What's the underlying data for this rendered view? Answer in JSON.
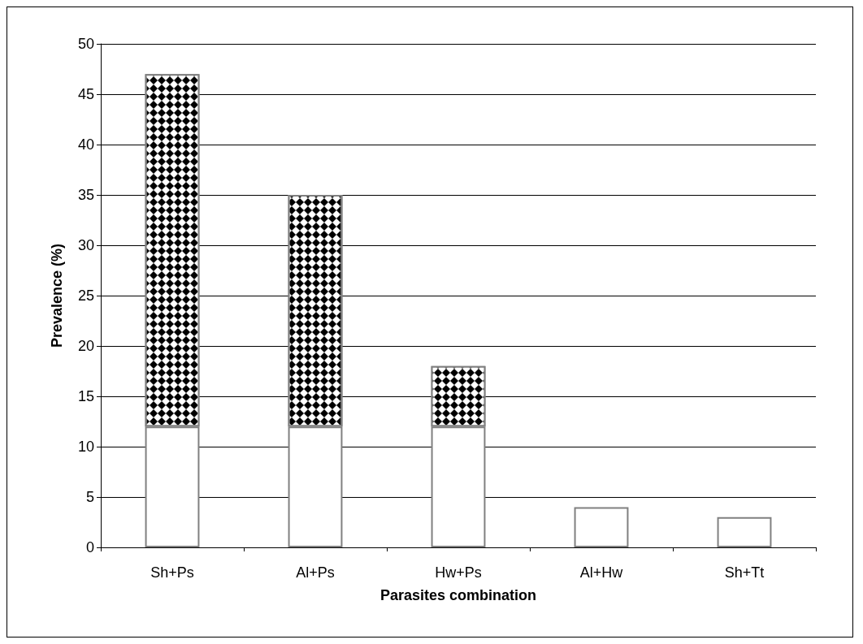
{
  "chart_data": {
    "type": "bar",
    "stacked": true,
    "xlabel": "Parasites combination",
    "ylabel": "Prevalence (%)",
    "categories": [
      "Sh+Ps",
      "Al+Ps",
      "Hw+Ps",
      "Al+Hw",
      "Sh+Tt"
    ],
    "series": [
      {
        "color": "#ffffff",
        "values": [
          12,
          12,
          12,
          4,
          3
        ]
      },
      {
        "color": "#000000",
        "values": [
          35,
          23,
          6,
          0,
          0
        ]
      }
    ],
    "ylim": [
      0,
      50
    ],
    "yticks": [
      0,
      5,
      10,
      15,
      20,
      25,
      30,
      35,
      40,
      45,
      50
    ],
    "grid": "y"
  }
}
